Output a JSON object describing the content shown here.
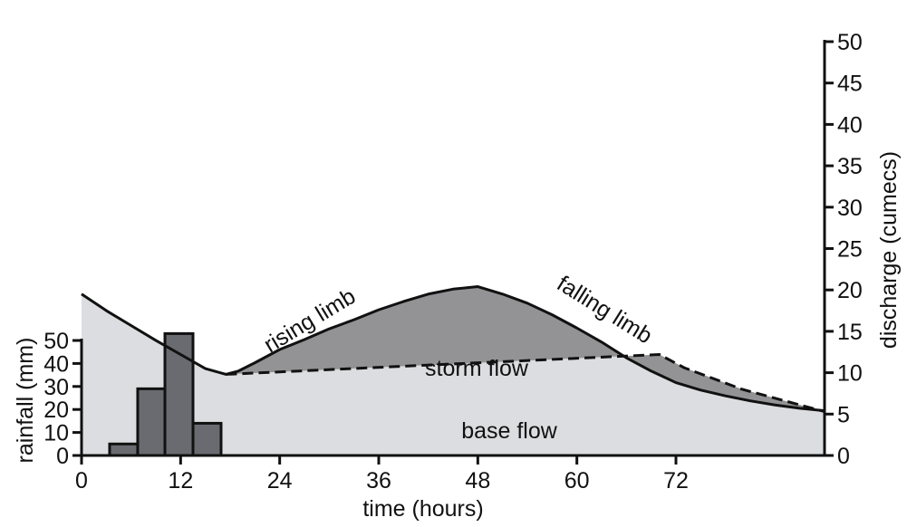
{
  "chart_data": {
    "type": "area",
    "xlabel": "time (hours)",
    "x_ticks": [
      "0",
      "12",
      "24",
      "36",
      "48",
      "60",
      "72"
    ],
    "x_tick_values": [
      0,
      12,
      24,
      36,
      48,
      60,
      72
    ],
    "xlim": [
      0,
      90
    ],
    "left_axis": {
      "label": "rainfall (mm)",
      "ticks": [
        "0",
        "10",
        "20",
        "30",
        "40",
        "50"
      ],
      "tick_values": [
        0,
        10,
        20,
        30,
        40,
        50
      ],
      "ylim": [
        0,
        50
      ]
    },
    "right_axis": {
      "label": "discharge (cumecs)",
      "ticks": [
        "0",
        "5",
        "10",
        "15",
        "20",
        "25",
        "30",
        "35",
        "40",
        "45",
        "50"
      ],
      "tick_values": [
        0,
        5,
        10,
        15,
        20,
        25,
        30,
        35,
        40,
        45,
        50
      ],
      "ylim": [
        0,
        50
      ]
    },
    "rainfall": {
      "type": "bar",
      "x_start": [
        3.4,
        6.8,
        10.1,
        13.5
      ],
      "x_end": [
        6.8,
        10.1,
        13.5,
        16.9
      ],
      "values": [
        5,
        29,
        53,
        14
      ]
    },
    "hydrograph": {
      "x": [
        0,
        3,
        6,
        9,
        12,
        15,
        17.5,
        19,
        21,
        24,
        27,
        30,
        33,
        36,
        39,
        42,
        45,
        48,
        51,
        54,
        57,
        60,
        63,
        66,
        69,
        72,
        75,
        78,
        81,
        84,
        87,
        90
      ],
      "y": [
        19.5,
        17.5,
        15.7,
        13.9,
        12.2,
        10.5,
        9.8,
        10.2,
        11.2,
        12.8,
        14.0,
        15.3,
        16.4,
        17.6,
        18.6,
        19.5,
        20.1,
        20.4,
        19.5,
        18.4,
        17.0,
        15.4,
        13.7,
        11.8,
        10.2,
        8.8,
        7.9,
        7.2,
        6.6,
        6.1,
        5.7,
        5.4
      ]
    },
    "baseflow": {
      "x": [
        17.5,
        70,
        73,
        80,
        90
      ],
      "y": [
        9.8,
        12.2,
        10.6,
        8.0,
        5.3
      ]
    },
    "annotations": {
      "rising": "rising limb",
      "falling": "falling limb",
      "storm": "storm flow",
      "base": "base flow"
    },
    "colors": {
      "storm_fill": "#939396",
      "base_fill": "#dcdde0",
      "bar_fill": "#6a6b70",
      "line": "#111111"
    }
  }
}
